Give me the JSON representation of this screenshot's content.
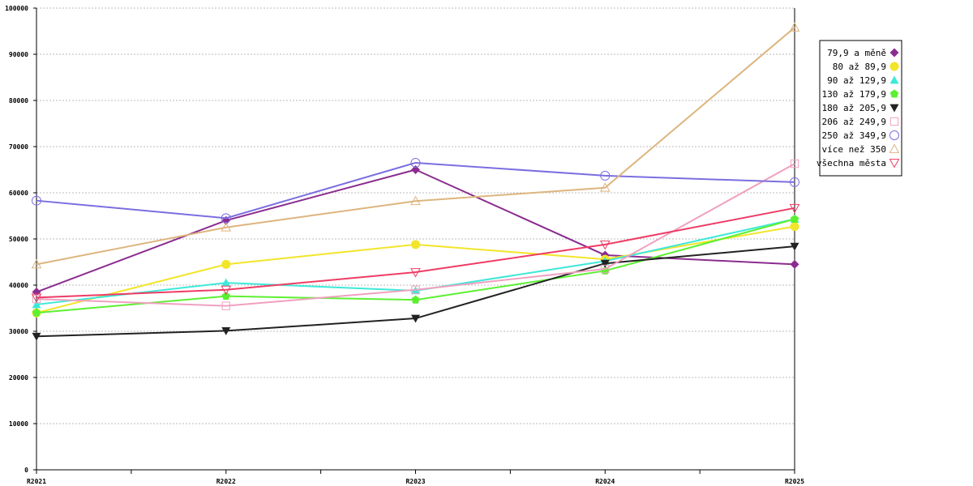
{
  "chart_data": {
    "type": "line",
    "categories": [
      "R2021",
      "R2022",
      "R2023",
      "R2024",
      "R2025"
    ],
    "ylim": [
      0,
      100000
    ],
    "yticks": [
      0,
      10000,
      20000,
      30000,
      40000,
      50000,
      60000,
      70000,
      80000,
      90000,
      100000
    ],
    "grid": true,
    "legend_position": "right",
    "series": [
      {
        "name": "79,9 a měně",
        "color": "#8b2c8f",
        "marker": "diamond",
        "values": [
          38500,
          54000,
          65000,
          46500,
          44500
        ]
      },
      {
        "name": "80 až 89,9",
        "color": "#f2e52a",
        "marker": "circle",
        "values": [
          34000,
          44500,
          48800,
          45600,
          52700
        ]
      },
      {
        "name": "90 až 129,9",
        "color": "#3ee8d8",
        "marker": "triangle-up",
        "values": [
          35800,
          40500,
          38800,
          45200,
          54300
        ]
      },
      {
        "name": "130 až 179,9",
        "color": "#5cf032",
        "marker": "pentagon",
        "values": [
          34000,
          37600,
          36800,
          43100,
          54300
        ]
      },
      {
        "name": "180 až 205,9",
        "color": "#222222",
        "marker": "triangle-down",
        "values": [
          28900,
          30100,
          32800,
          44700,
          48400
        ]
      },
      {
        "name": "206 až 249,9",
        "color": "#f0a0c0",
        "marker": "square-open",
        "values": [
          37000,
          35500,
          39000,
          43500,
          66300
        ]
      },
      {
        "name": "250 až 349,9",
        "color": "#7b6ee0",
        "marker": "circle-open",
        "values": [
          58300,
          54500,
          66500,
          63700,
          62300
        ]
      },
      {
        "name": "více než 350",
        "color": "#ddb57e",
        "marker": "triangle-up-open",
        "values": [
          44500,
          52500,
          58200,
          61100,
          95800
        ]
      },
      {
        "name": "všechna města",
        "color": "#ee3c66",
        "marker": "triangle-down-open",
        "values": [
          37300,
          39000,
          42800,
          48800,
          56700
        ]
      }
    ]
  }
}
